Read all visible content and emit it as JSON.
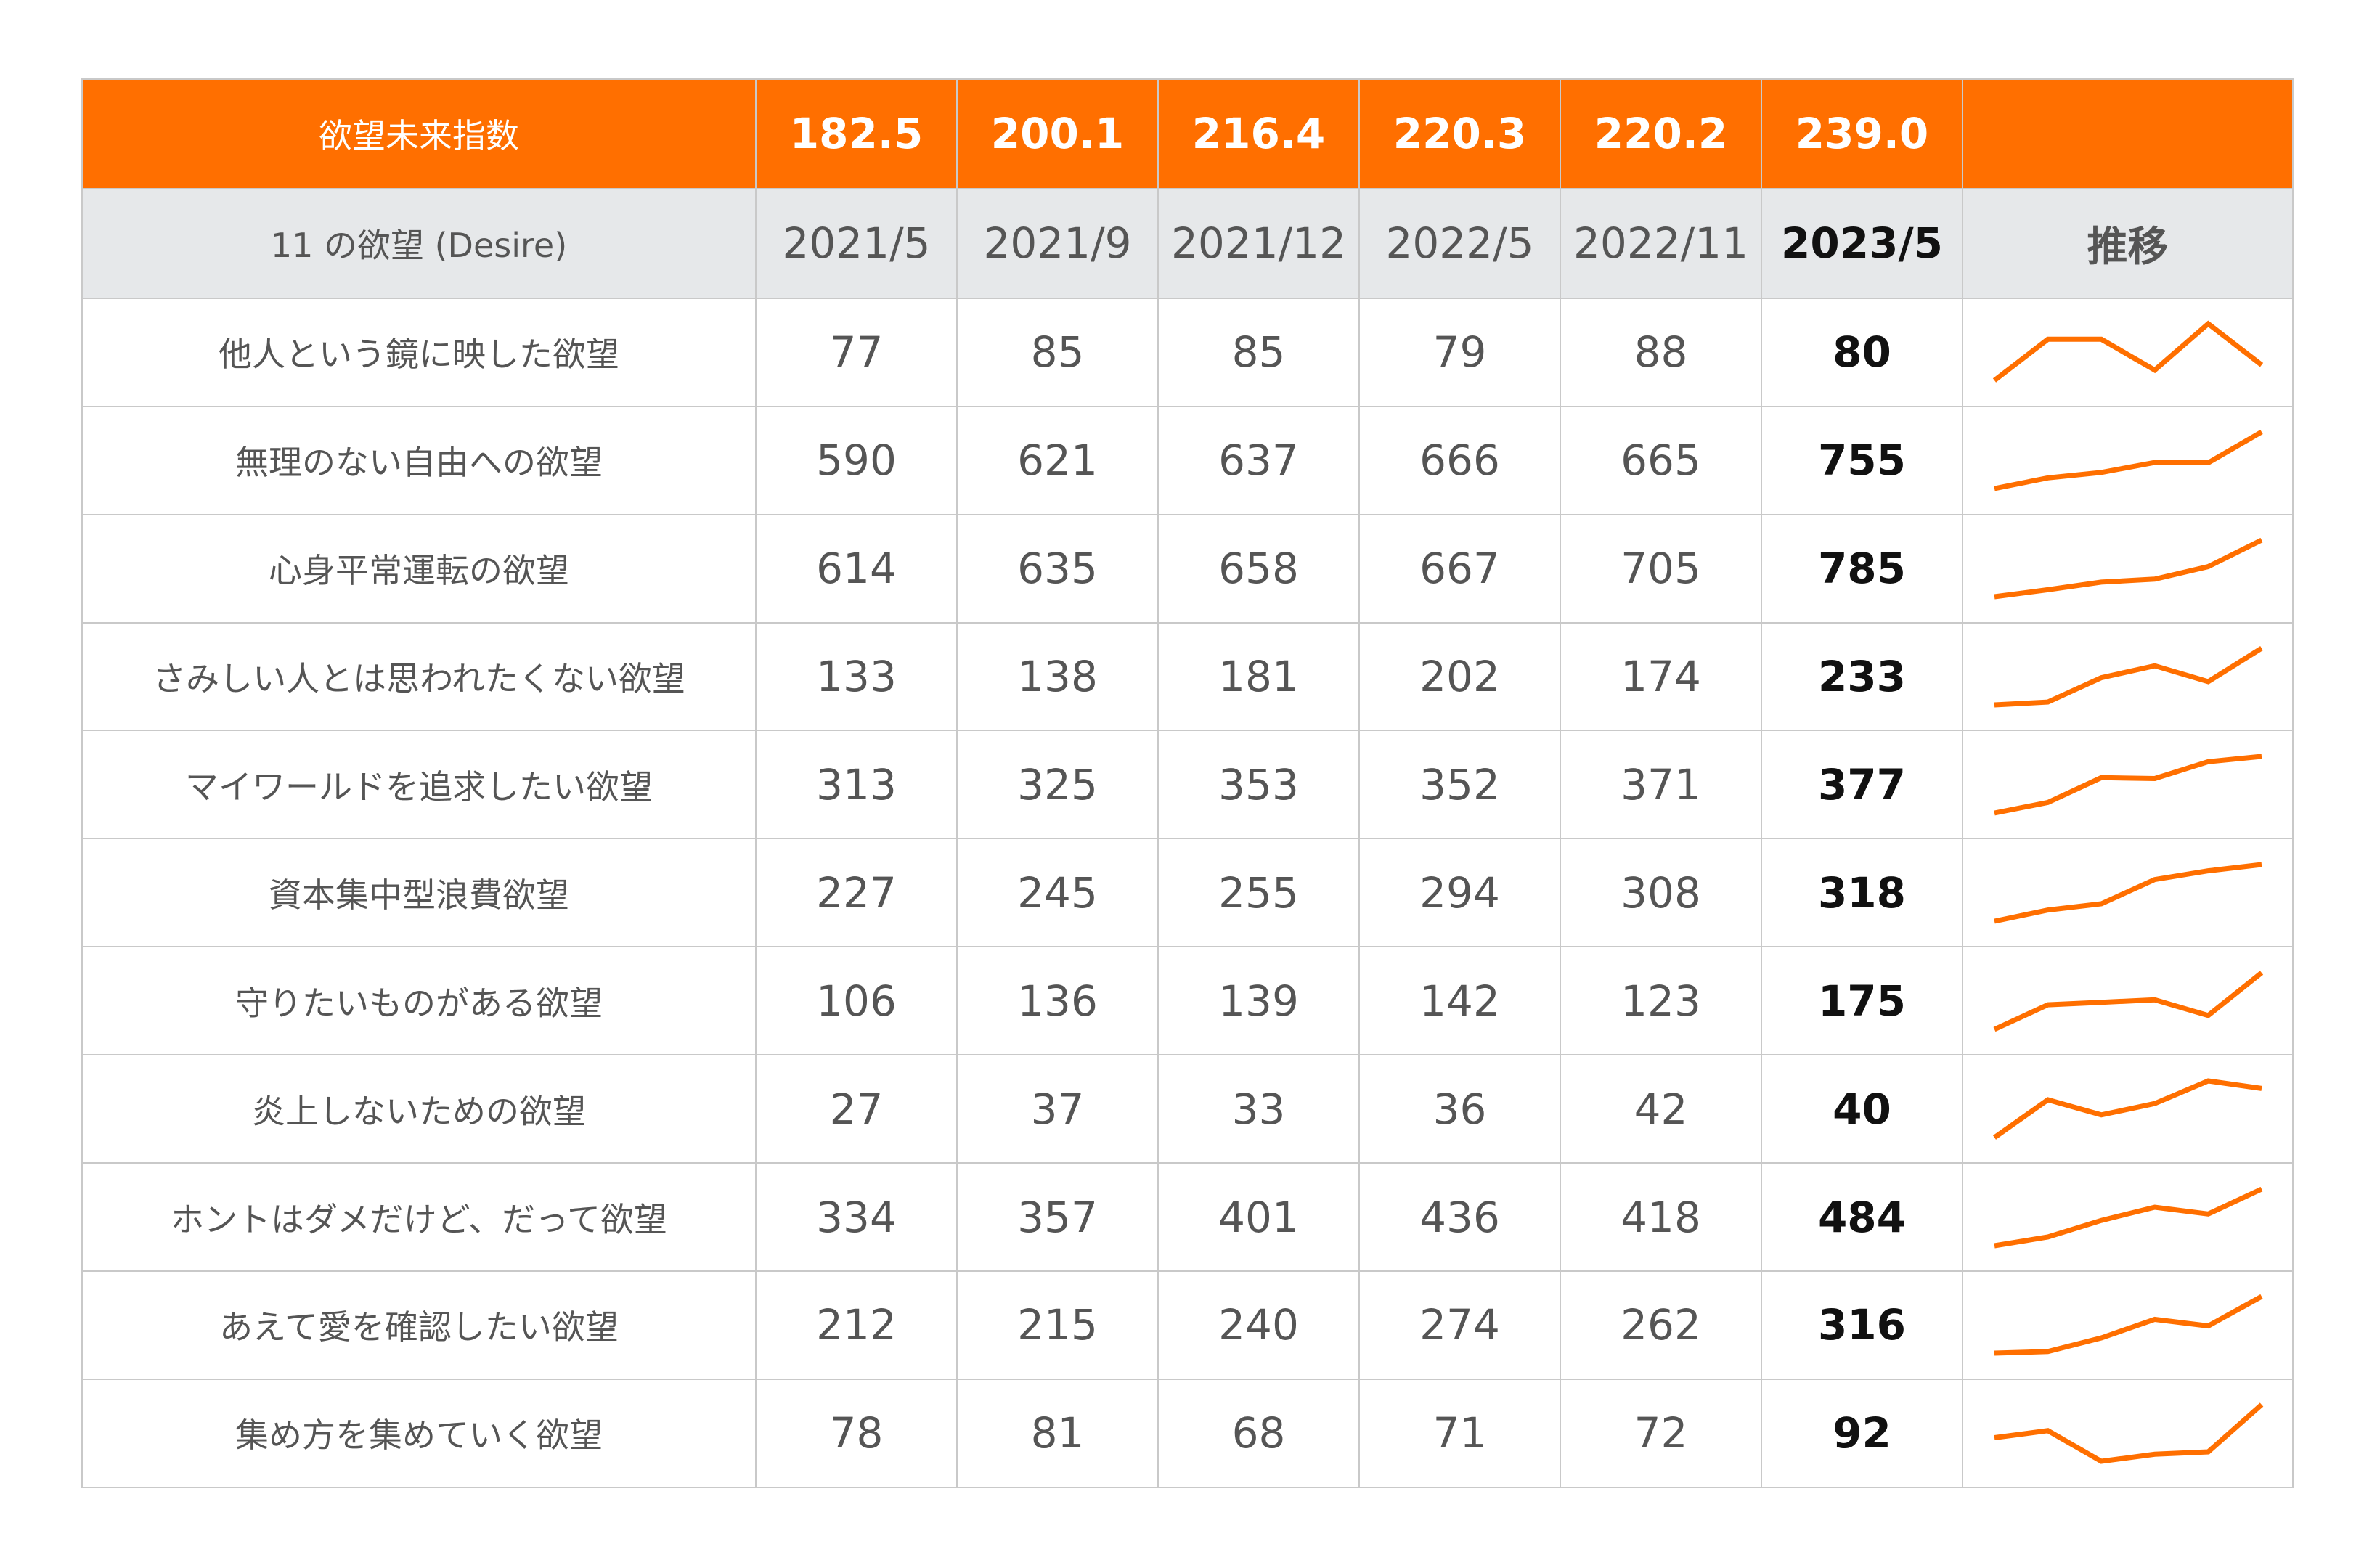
{
  "accent_color": "#ff6f00",
  "header_bg_color": "#e6e8ea",
  "index_row": {
    "label": "欲望未来指数",
    "values": [
      "182.5",
      "200.1",
      "216.4",
      "220.3",
      "220.2",
      "239.0"
    ]
  },
  "header_row": {
    "label": "11 の欲望 (Desire)",
    "dates": [
      "2021/5",
      "2021/9",
      "2021/12",
      "2022/5",
      "2022/11",
      "2023/5"
    ],
    "trend_label": "推移"
  },
  "chart_data": {
    "type": "table",
    "categories": [
      "2021/5",
      "2021/9",
      "2021/12",
      "2022/5",
      "2022/11",
      "2023/5"
    ],
    "index": {
      "name": "欲望未来指数",
      "values": [
        182.5,
        200.1,
        216.4,
        220.3,
        220.2,
        239.0
      ]
    },
    "series": [
      {
        "name": "他人という鏡に映した欲望",
        "values": [
          77,
          85,
          85,
          79,
          88,
          80
        ]
      },
      {
        "name": "無理のない自由への欲望",
        "values": [
          590,
          621,
          637,
          666,
          665,
          755
        ]
      },
      {
        "name": "心身平常運転の欲望",
        "values": [
          614,
          635,
          658,
          667,
          705,
          785
        ]
      },
      {
        "name": "さみしい人とは思われたくない欲望",
        "values": [
          133,
          138,
          181,
          202,
          174,
          233
        ]
      },
      {
        "name": "マイワールドを追求したい欲望",
        "values": [
          313,
          325,
          353,
          352,
          371,
          377
        ]
      },
      {
        "name": "資本集中型浪費欲望",
        "values": [
          227,
          245,
          255,
          294,
          308,
          318
        ]
      },
      {
        "name": "守りたいものがある欲望",
        "values": [
          106,
          136,
          139,
          142,
          123,
          175
        ]
      },
      {
        "name": "炎上しないための欲望",
        "values": [
          27,
          37,
          33,
          36,
          42,
          40
        ]
      },
      {
        "name": "ホントはダメだけど、だって欲望",
        "values": [
          334,
          357,
          401,
          436,
          418,
          484
        ]
      },
      {
        "name": "あえて愛を確認したい欲望",
        "values": [
          212,
          215,
          240,
          274,
          262,
          316
        ]
      },
      {
        "name": "集め方を集めていく欲望",
        "values": [
          78,
          81,
          68,
          71,
          72,
          92
        ]
      }
    ]
  }
}
